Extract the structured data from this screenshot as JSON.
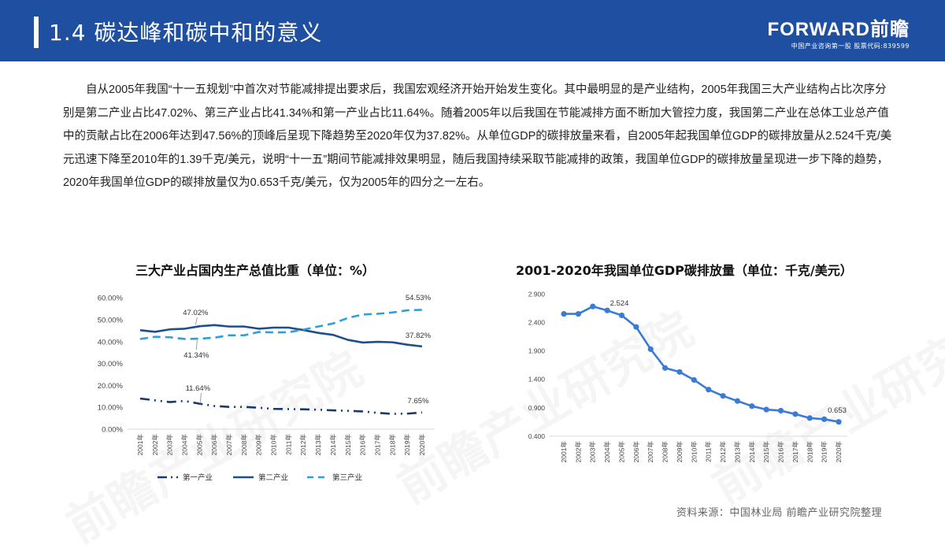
{
  "header": {
    "title": "1.4 碳达峰和碳中和的意义",
    "brand": "FORWARD前瞻",
    "brand_sub": "中国产业咨询第一股 股票代码:839599"
  },
  "paragraph": "自从2005年我国“十一五规划”中首次对节能减排提出要求后，我国宏观经济开始开始发生变化。其中最明显的是产业结构，2005年我国三大产业结构占比次序分别是第二产业占比47.02%、第三产业占比41.34%和第一产业占比11.64%。随着2005年以后我国在节能减排方面不断加大管控力度，我国第二产业在总体工业总产值中的贡献占比在2006年达到47.56%的顶峰后呈现下降趋势至2020年仅为37.82%。从单位GDP的碳排放量来看，自2005年起我国单位GDP的碳排放量从2.524千克/美元迅速下降至2010年的1.39千克/美元，说明“十一五”期间节能减排效果明显，随后我国持续采取节能减排的政策，我国单位GDP的碳排放量呈现进一步下降的趋势，2020年我国单位GDP的碳排放量仅为0.653千克/美元，仅为2005年的四分之一左右。",
  "source": "资料来源：中国林业局 前瞻产业研究院整理",
  "watermark": "前瞻产业研究院",
  "chart_data": [
    {
      "type": "line",
      "title": "三大产业占国内生产总值比重（单位：%）",
      "xlabel": "",
      "ylabel": "",
      "ylim": [
        0,
        60
      ],
      "yticks": [
        "60.00%",
        "50.00%",
        "40.00%",
        "30.00%",
        "20.00%",
        "10.00%",
        "0.00%"
      ],
      "categories": [
        "2001年",
        "2002年",
        "2003年",
        "2004年",
        "2005年",
        "2006年",
        "2007年",
        "2008年",
        "2009年",
        "2010年",
        "2011年",
        "2012年",
        "2013年",
        "2014年",
        "2015年",
        "2016年",
        "2017年",
        "2018年",
        "2019年",
        "2020年"
      ],
      "series": [
        {
          "name": "第一产业",
          "color": "#1a3a6b",
          "style": "dash-dot",
          "values": [
            14.0,
            13.2,
            12.4,
            12.9,
            11.64,
            10.6,
            10.2,
            10.2,
            9.8,
            9.3,
            9.2,
            9.1,
            8.9,
            8.6,
            8.4,
            8.1,
            7.5,
            7.0,
            7.1,
            7.65
          ]
        },
        {
          "name": "第二产业",
          "color": "#1f4e8c",
          "style": "solid",
          "values": [
            45.2,
            44.5,
            45.6,
            45.9,
            47.02,
            47.56,
            46.9,
            46.9,
            45.9,
            46.4,
            46.4,
            45.3,
            44.0,
            43.1,
            40.8,
            39.6,
            39.9,
            39.7,
            38.6,
            37.82
          ]
        },
        {
          "name": "第三产业",
          "color": "#2e9fd8",
          "style": "dashed",
          "values": [
            41.2,
            42.2,
            42.0,
            41.2,
            41.34,
            41.8,
            42.9,
            42.9,
            44.4,
            44.2,
            44.3,
            45.5,
            46.9,
            48.3,
            50.8,
            52.4,
            52.7,
            53.3,
            54.3,
            54.53
          ]
        }
      ],
      "annotations": [
        {
          "label": "47.02%",
          "series": "第二产业",
          "year": "2005年"
        },
        {
          "label": "41.34%",
          "series": "第三产业",
          "year": "2005年"
        },
        {
          "label": "11.64%",
          "series": "第一产业",
          "year": "2005年"
        },
        {
          "label": "54.53%",
          "series": "第三产业",
          "year": "2020年"
        },
        {
          "label": "37.82%",
          "series": "第二产业",
          "year": "2020年"
        },
        {
          "label": "7.65%",
          "series": "第一产业",
          "year": "2020年"
        }
      ],
      "legend": [
        "第一产业",
        "第二产业",
        "第三产业"
      ],
      "legend_position": "bottom",
      "grid": false
    },
    {
      "type": "line",
      "title": "2001-2020年我国单位GDP碳排放量（单位：千克/美元）",
      "xlabel": "",
      "ylabel": "",
      "ylim": [
        0.4,
        2.9
      ],
      "yticks": [
        "2.900",
        "2.400",
        "1.900",
        "1.400",
        "0.900",
        "0.400"
      ],
      "categories": [
        "2001年",
        "2002年",
        "2003年",
        "2004年",
        "2005年",
        "2006年",
        "2007年",
        "2008年",
        "2009年",
        "2010年",
        "2011年",
        "2012年",
        "2013年",
        "2014年",
        "2015年",
        "2016年",
        "2017年",
        "2018年",
        "2019年",
        "2020年"
      ],
      "series": [
        {
          "name": "单位GDP碳排放量",
          "color": "#3a7bd5",
          "style": "solid-markers",
          "values": [
            2.55,
            2.55,
            2.68,
            2.61,
            2.524,
            2.32,
            1.93,
            1.6,
            1.53,
            1.39,
            1.22,
            1.11,
            1.02,
            0.93,
            0.87,
            0.85,
            0.79,
            0.72,
            0.7,
            0.653
          ]
        }
      ],
      "annotations": [
        {
          "label": "2.524",
          "year": "2005年"
        },
        {
          "label": "0.653",
          "year": "2020年"
        }
      ],
      "legend": [],
      "grid": false
    }
  ]
}
